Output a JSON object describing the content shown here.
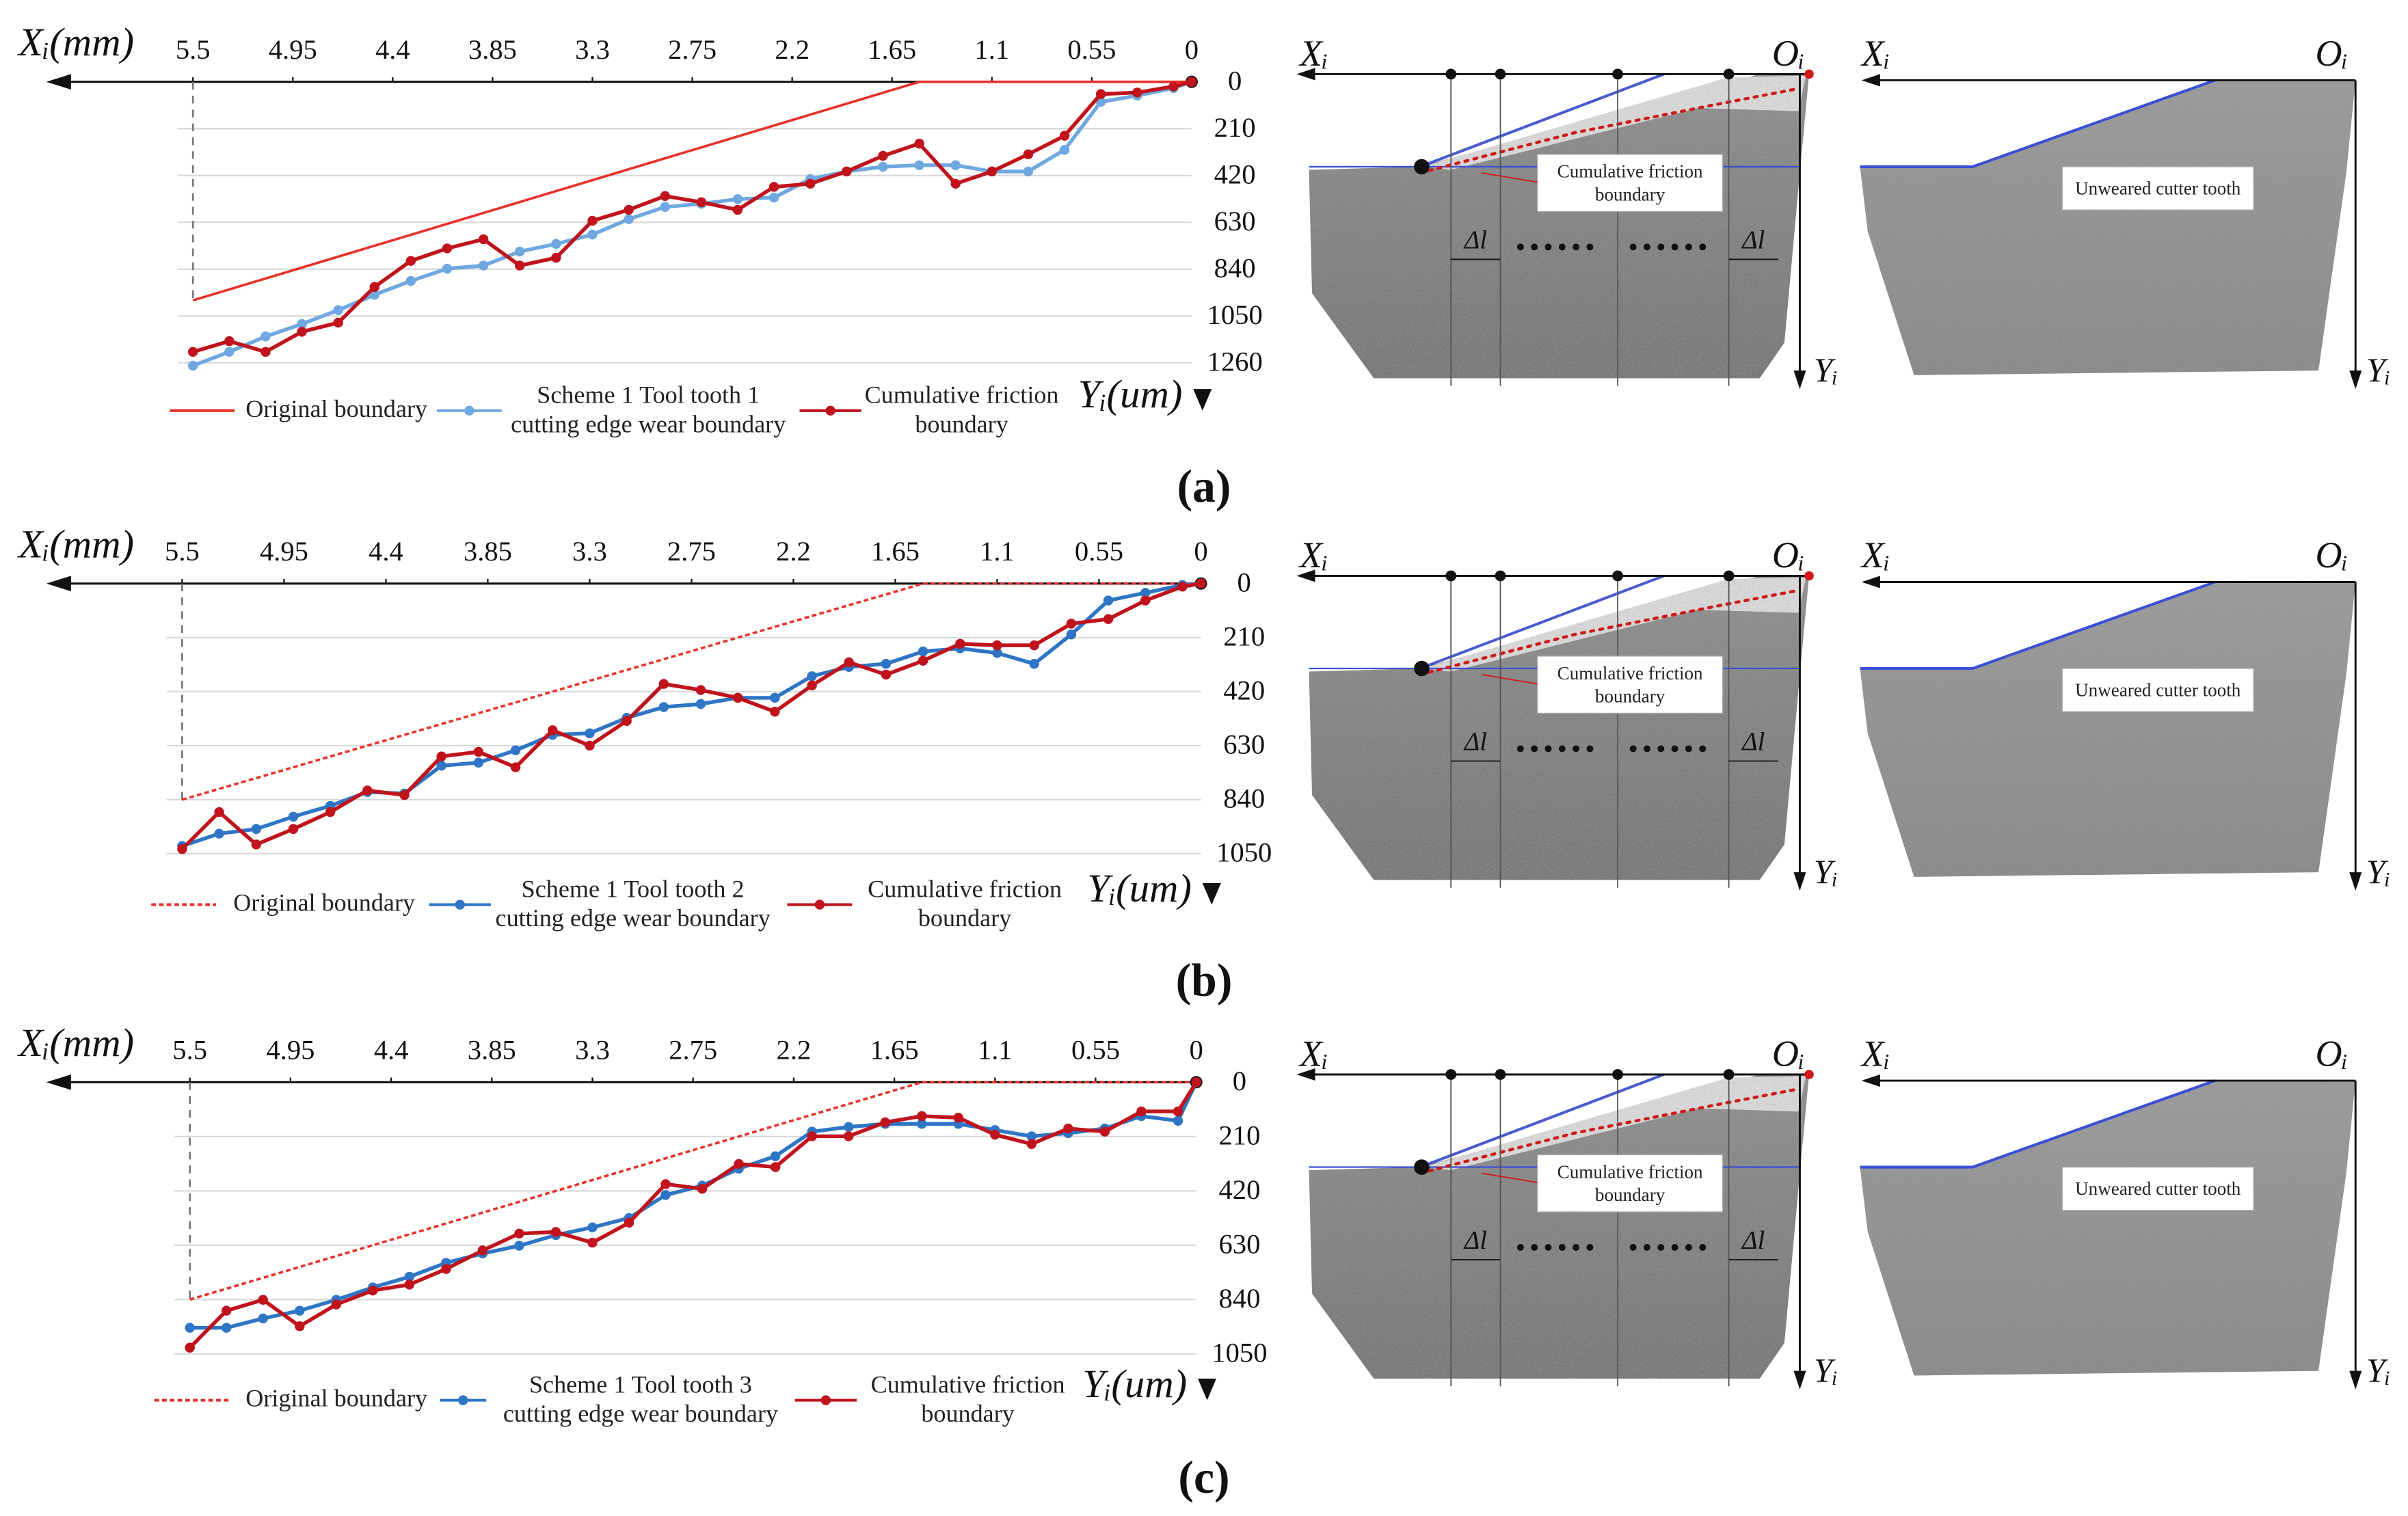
{
  "chart_data": [
    {
      "type": "line",
      "x_label": "Xᵢ(mm)",
      "y_label": "Yᵢ(um)",
      "xlim": [
        5.5,
        0
      ],
      "xticks": [
        5.5,
        4.95,
        4.4,
        3.85,
        3.3,
        2.75,
        2.2,
        1.65,
        1.1,
        0.55,
        0
      ],
      "ylim": [
        0,
        1260
      ],
      "yticks": [
        0,
        210,
        420,
        630,
        840,
        1050,
        1260
      ],
      "grid": true,
      "x": [
        5.5,
        5.3,
        5.1,
        4.9,
        4.7,
        4.5,
        4.3,
        4.1,
        3.9,
        3.7,
        3.5,
        3.3,
        3.1,
        2.9,
        2.7,
        2.5,
        2.3,
        2.1,
        1.9,
        1.7,
        1.5,
        1.3,
        1.1,
        0.9,
        0.7,
        0.5,
        0.3,
        0.1,
        0
      ],
      "series": [
        {
          "name": "Original boundary",
          "color": "#e8302a",
          "line_style": "solid",
          "markers": false,
          "x": [
            5.5,
            1.5,
            0
          ],
          "values": [
            980,
            0,
            0
          ]
        },
        {
          "name": "Scheme 1 Tool tooth 1\ncutting edge wear boundary",
          "color": "#6fa8e0",
          "line_style": "solid",
          "markers": true,
          "values": [
            1273,
            1211,
            1142,
            1086,
            1024,
            955,
            893,
            838,
            824,
            761,
            727,
            685,
            616,
            561,
            547,
            526,
            519,
            436,
            402,
            381,
            374,
            374,
            402,
            402,
            305,
            90,
            62,
            28,
            0
          ]
        },
        {
          "name": "Cumulative friction\nboundary",
          "color": "#c0131c",
          "line_style": "solid",
          "markers": true,
          "values": [
            1211,
            1163,
            1211,
            1121,
            1080,
            920,
            803,
            747,
            706,
            824,
            789,
            623,
            574,
            512,
            540,
            574,
            471,
            457,
            402,
            332,
            277,
            457,
            402,
            325,
            242,
            55,
            48,
            21,
            0
          ]
        }
      ]
    },
    {
      "type": "line",
      "x_label": "Xᵢ(mm)",
      "y_label": "Yᵢ(um)",
      "xlim": [
        5.5,
        0
      ],
      "xticks": [
        5.5,
        4.95,
        4.4,
        3.85,
        3.3,
        2.75,
        2.2,
        1.65,
        1.1,
        0.55,
        0
      ],
      "ylim": [
        0,
        1050
      ],
      "yticks": [
        0,
        210,
        420,
        630,
        840,
        1050
      ],
      "grid": true,
      "x": [
        5.5,
        5.3,
        5.1,
        4.9,
        4.7,
        4.5,
        4.3,
        4.1,
        3.9,
        3.7,
        3.5,
        3.3,
        3.1,
        2.9,
        2.7,
        2.5,
        2.3,
        2.1,
        1.9,
        1.7,
        1.5,
        1.3,
        1.1,
        0.9,
        0.7,
        0.5,
        0.3,
        0.1,
        0
      ],
      "series": [
        {
          "name": "Original boundary",
          "color": "#e8302a",
          "line_style": "dotted",
          "markers": false,
          "x": [
            5.5,
            1.5,
            0
          ],
          "values": [
            840,
            0,
            0
          ]
        },
        {
          "name": "Scheme 1 Tool tooth 2\ncutting edge wear boundary",
          "color": "#2e75c5",
          "line_style": "solid",
          "markers": true,
          "values": [
            1020,
            972,
            954,
            906,
            864,
            810,
            816,
            708,
            696,
            648,
            588,
            582,
            522,
            480,
            468,
            444,
            444,
            360,
            324,
            312,
            264,
            252,
            270,
            312,
            198,
            66,
            36,
            6,
            0
          ]
        },
        {
          "name": "Cumulative friction\nboundary",
          "color": "#c0131c",
          "line_style": "solid",
          "markers": true,
          "values": [
            1032,
            888,
            1014,
            954,
            888,
            804,
            822,
            672,
            654,
            714,
            570,
            630,
            534,
            390,
            414,
            444,
            498,
            396,
            306,
            354,
            300,
            234,
            240,
            240,
            156,
            138,
            66,
            12,
            0
          ]
        }
      ]
    },
    {
      "type": "line",
      "x_label": "Xᵢ(mm)",
      "y_label": "Yᵢ(um)",
      "xlim": [
        5.5,
        0
      ],
      "xticks": [
        5.5,
        4.95,
        4.4,
        3.85,
        3.3,
        2.75,
        2.2,
        1.65,
        1.1,
        0.55,
        0
      ],
      "ylim": [
        0,
        1050
      ],
      "yticks": [
        0,
        210,
        420,
        630,
        840,
        1050
      ],
      "grid": true,
      "x": [
        5.5,
        5.3,
        5.1,
        4.9,
        4.7,
        4.5,
        4.3,
        4.1,
        3.9,
        3.7,
        3.5,
        3.3,
        3.1,
        2.9,
        2.7,
        2.5,
        2.3,
        2.1,
        1.9,
        1.7,
        1.5,
        1.3,
        1.1,
        0.9,
        0.7,
        0.5,
        0.3,
        0.1,
        0
      ],
      "series": [
        {
          "name": "Original boundary",
          "color": "#e8302a",
          "line_style": "dotted",
          "markers": false,
          "x": [
            5.5,
            1.5,
            0
          ],
          "values": [
            840,
            0,
            0
          ]
        },
        {
          "name": "Scheme 1 Tool tooth 3\ncutting edge wear boundary",
          "color": "#2e75c5",
          "line_style": "solid",
          "markers": true,
          "values": [
            949,
            949,
            913,
            883,
            841,
            793,
            752,
            698,
            662,
            632,
            591,
            561,
            525,
            436,
            400,
            334,
            286,
            191,
            173,
            161,
            161,
            161,
            185,
            209,
            197,
            179,
            131,
            149,
            0
          ]
        },
        {
          "name": "Cumulative friction\nboundary",
          "color": "#c0131c",
          "line_style": "solid",
          "markers": true,
          "values": [
            1026,
            883,
            841,
            943,
            859,
            805,
            782,
            722,
            650,
            585,
            579,
            620,
            543,
            394,
            412,
            316,
            328,
            209,
            209,
            155,
            131,
            137,
            203,
            239,
            179,
            191,
            113,
            113,
            0
          ]
        }
      ]
    }
  ],
  "panels": [
    {
      "label": "(a)",
      "x_axis": "Xᵢ",
      "origin": "Oᵢ",
      "y_axis": "Yᵢ",
      "delta": "Δl",
      "friction_label": "Cumulative friction\nboundary",
      "unworn_label": "Unweared cutter tooth"
    },
    {
      "label": "(b)",
      "x_axis": "Xᵢ",
      "origin": "Oᵢ",
      "y_axis": "Yᵢ",
      "delta": "Δl",
      "friction_label": "Cumulative friction\nboundary",
      "unworn_label": "Unweared cutter tooth"
    },
    {
      "label": "(c)",
      "x_axis": "Xᵢ",
      "origin": "Oᵢ",
      "y_axis": "Yᵢ",
      "delta": "Δl",
      "friction_label": "Cumulative friction\nboundary",
      "unworn_label": "Unweared cutter tooth"
    }
  ]
}
